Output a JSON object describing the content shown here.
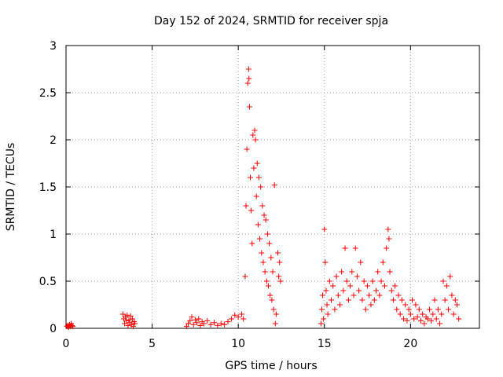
{
  "chart_data": {
    "type": "scatter",
    "title": "Day 152 of 2024, SRMTID for receiver spja",
    "xlabel": "GPS time / hours",
    "ylabel": "SRMTID / TECUs",
    "xlim": [
      0,
      24
    ],
    "ylim": [
      0,
      3
    ],
    "xticks": [
      0,
      5,
      10,
      15,
      20
    ],
    "xtick_labels": [
      "0",
      "5",
      "10",
      "15",
      "20"
    ],
    "yticks": [
      0,
      0.5,
      1,
      1.5,
      2,
      2.5,
      3
    ],
    "ytick_labels": [
      "0",
      "0.5",
      "1",
      "1.5",
      "2",
      "2.5",
      "3"
    ],
    "grid": true,
    "marker": "+",
    "series": [
      {
        "name": "SRMTID",
        "color": "#ff0000",
        "points": [
          [
            0.05,
            0.02
          ],
          [
            0.1,
            0.03
          ],
          [
            0.15,
            0.01
          ],
          [
            0.2,
            0.04
          ],
          [
            0.25,
            0.02
          ],
          [
            0.3,
            0.05
          ],
          [
            0.35,
            0.03
          ],
          [
            0.4,
            0.02
          ],
          [
            3.3,
            0.15
          ],
          [
            3.35,
            0.1
          ],
          [
            3.4,
            0.05
          ],
          [
            3.45,
            0.12
          ],
          [
            3.5,
            0.08
          ],
          [
            3.55,
            0.14
          ],
          [
            3.6,
            0.03
          ],
          [
            3.65,
            0.09
          ],
          [
            3.7,
            0.06
          ],
          [
            3.75,
            0.13
          ],
          [
            3.8,
            0.04
          ],
          [
            3.85,
            0.1
          ],
          [
            3.9,
            0.02
          ],
          [
            3.95,
            0.07
          ],
          [
            4.0,
            0.05
          ],
          [
            7.0,
            0.02
          ],
          [
            7.1,
            0.05
          ],
          [
            7.2,
            0.08
          ],
          [
            7.3,
            0.12
          ],
          [
            7.4,
            0.04
          ],
          [
            7.5,
            0.09
          ],
          [
            7.6,
            0.06
          ],
          [
            7.7,
            0.1
          ],
          [
            7.8,
            0.03
          ],
          [
            7.9,
            0.07
          ],
          [
            8.0,
            0.05
          ],
          [
            8.2,
            0.08
          ],
          [
            8.4,
            0.04
          ],
          [
            8.6,
            0.06
          ],
          [
            8.8,
            0.03
          ],
          [
            9.0,
            0.05
          ],
          [
            9.2,
            0.04
          ],
          [
            9.4,
            0.07
          ],
          [
            9.6,
            0.1
          ],
          [
            9.8,
            0.14
          ],
          [
            10.0,
            0.12
          ],
          [
            10.2,
            0.15
          ],
          [
            10.3,
            0.1
          ],
          [
            10.4,
            0.55
          ],
          [
            10.45,
            1.3
          ],
          [
            10.5,
            1.9
          ],
          [
            10.55,
            2.6
          ],
          [
            10.6,
            2.75
          ],
          [
            10.62,
            2.65
          ],
          [
            10.65,
            2.35
          ],
          [
            10.7,
            1.6
          ],
          [
            10.75,
            1.25
          ],
          [
            10.8,
            0.9
          ],
          [
            10.85,
            2.05
          ],
          [
            10.9,
            1.7
          ],
          [
            10.95,
            2.1
          ],
          [
            11.0,
            2.0
          ],
          [
            11.05,
            1.4
          ],
          [
            11.1,
            1.75
          ],
          [
            11.15,
            1.1
          ],
          [
            11.2,
            1.6
          ],
          [
            11.25,
            0.95
          ],
          [
            11.3,
            1.5
          ],
          [
            11.35,
            0.8
          ],
          [
            11.4,
            1.3
          ],
          [
            11.45,
            0.7
          ],
          [
            11.5,
            1.2
          ],
          [
            11.55,
            0.6
          ],
          [
            11.6,
            1.15
          ],
          [
            11.65,
            0.5
          ],
          [
            11.7,
            1.0
          ],
          [
            11.75,
            0.45
          ],
          [
            11.8,
            0.9
          ],
          [
            11.85,
            0.35
          ],
          [
            11.9,
            0.75
          ],
          [
            11.95,
            0.3
          ],
          [
            12.0,
            0.6
          ],
          [
            12.05,
            0.2
          ],
          [
            12.1,
            1.52
          ],
          [
            12.15,
            0.05
          ],
          [
            12.2,
            0.15
          ],
          [
            12.3,
            0.8
          ],
          [
            12.35,
            0.55
          ],
          [
            12.4,
            0.7
          ],
          [
            12.45,
            0.5
          ],
          [
            14.8,
            0.05
          ],
          [
            14.85,
            0.2
          ],
          [
            14.9,
            0.35
          ],
          [
            14.95,
            0.1
          ],
          [
            15.0,
            1.05
          ],
          [
            15.05,
            0.7
          ],
          [
            15.1,
            0.4
          ],
          [
            15.15,
            0.25
          ],
          [
            15.2,
            0.15
          ],
          [
            15.3,
            0.5
          ],
          [
            15.4,
            0.3
          ],
          [
            15.5,
            0.45
          ],
          [
            15.6,
            0.2
          ],
          [
            15.7,
            0.55
          ],
          [
            15.8,
            0.35
          ],
          [
            15.9,
            0.25
          ],
          [
            16.0,
            0.6
          ],
          [
            16.1,
            0.4
          ],
          [
            16.2,
            0.85
          ],
          [
            16.3,
            0.5
          ],
          [
            16.4,
            0.3
          ],
          [
            16.5,
            0.45
          ],
          [
            16.6,
            0.6
          ],
          [
            16.7,
            0.35
          ],
          [
            16.8,
            0.85
          ],
          [
            16.9,
            0.55
          ],
          [
            17.0,
            0.4
          ],
          [
            17.1,
            0.7
          ],
          [
            17.2,
            0.3
          ],
          [
            17.3,
            0.5
          ],
          [
            17.4,
            0.2
          ],
          [
            17.5,
            0.45
          ],
          [
            17.6,
            0.35
          ],
          [
            17.7,
            0.25
          ],
          [
            17.8,
            0.5
          ],
          [
            17.9,
            0.3
          ],
          [
            18.0,
            0.4
          ],
          [
            18.1,
            0.6
          ],
          [
            18.2,
            0.35
          ],
          [
            18.3,
            0.5
          ],
          [
            18.4,
            0.7
          ],
          [
            18.5,
            0.45
          ],
          [
            18.6,
            0.85
          ],
          [
            18.7,
            1.05
          ],
          [
            18.75,
            0.95
          ],
          [
            18.8,
            0.6
          ],
          [
            18.9,
            0.4
          ],
          [
            19.0,
            0.3
          ],
          [
            19.1,
            0.45
          ],
          [
            19.2,
            0.2
          ],
          [
            19.3,
            0.35
          ],
          [
            19.4,
            0.15
          ],
          [
            19.5,
            0.3
          ],
          [
            19.6,
            0.1
          ],
          [
            19.7,
            0.25
          ],
          [
            19.8,
            0.08
          ],
          [
            19.9,
            0.2
          ],
          [
            20.0,
            0.15
          ],
          [
            20.1,
            0.3
          ],
          [
            20.2,
            0.1
          ],
          [
            20.3,
            0.25
          ],
          [
            20.4,
            0.12
          ],
          [
            20.5,
            0.2
          ],
          [
            20.6,
            0.08
          ],
          [
            20.7,
            0.15
          ],
          [
            20.8,
            0.05
          ],
          [
            20.9,
            0.12
          ],
          [
            21.0,
            0.1
          ],
          [
            21.1,
            0.2
          ],
          [
            21.2,
            0.08
          ],
          [
            21.3,
            0.15
          ],
          [
            21.4,
            0.3
          ],
          [
            21.5,
            0.1
          ],
          [
            21.6,
            0.2
          ],
          [
            21.7,
            0.05
          ],
          [
            21.8,
            0.15
          ],
          [
            21.9,
            0.5
          ],
          [
            22.0,
            0.3
          ],
          [
            22.1,
            0.45
          ],
          [
            22.2,
            0.2
          ],
          [
            22.3,
            0.55
          ],
          [
            22.4,
            0.35
          ],
          [
            22.5,
            0.15
          ],
          [
            22.6,
            0.3
          ],
          [
            22.7,
            0.25
          ],
          [
            22.8,
            0.1
          ]
        ]
      }
    ]
  }
}
